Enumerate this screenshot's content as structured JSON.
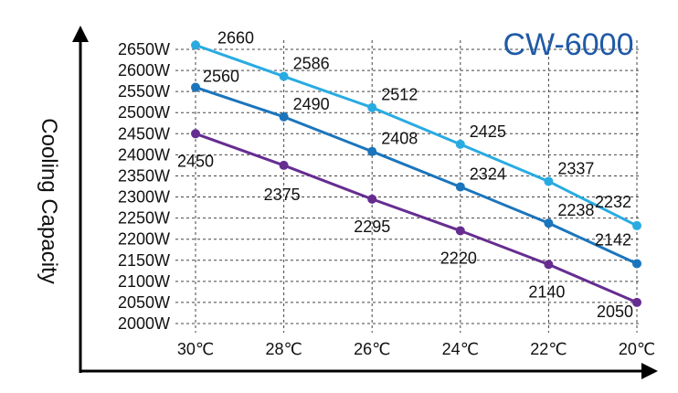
{
  "chart_data": {
    "type": "line",
    "title": "CW-6000",
    "ylabel": "Cooling Capacity",
    "xlabel": "",
    "categories": [
      "30℃",
      "28℃",
      "26℃",
      "24℃",
      "22℃",
      "20℃"
    ],
    "yticks": [
      "2650W",
      "2600W",
      "2550W",
      "2500W",
      "2450W",
      "2400W",
      "2350W",
      "2300W",
      "2250W",
      "2200W",
      "2150W",
      "2100W",
      "2050W",
      "2000W"
    ],
    "ylim": [
      2000,
      2650
    ],
    "grid": true,
    "series": [
      {
        "values": [
          2660,
          2586,
          2512,
          2425,
          2337,
          2232
        ],
        "color": "#29abe2"
      },
      {
        "values": [
          2560,
          2490,
          2408,
          2324,
          2238,
          2142
        ],
        "color": "#1b75bc"
      },
      {
        "values": [
          2450,
          2375,
          2295,
          2220,
          2140,
          2050
        ],
        "color": "#662d91"
      }
    ]
  }
}
